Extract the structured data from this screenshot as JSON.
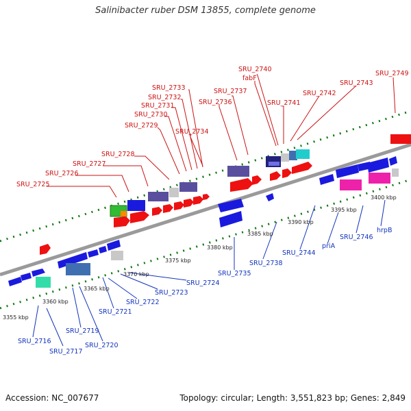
{
  "title": "Salinibacter ruber DSM 13855, complete genome",
  "footer": {
    "accession": "Accession: NC_007677",
    "summary": "Topology: circular; Length: 3,551,823 bp; Genes: 2,849"
  },
  "colors": {
    "red": "#ee1111",
    "blue": "#1a1adf",
    "purple": "#5a4f9e",
    "navy": "#22227a",
    "pink": "#ee22aa",
    "cyan": "#22cccc",
    "teal": "#33ddaa",
    "steel": "#3f6fb0",
    "gray": "#c8c8c8",
    "green": "#33bb33",
    "orange": "#ff8800",
    "label_top": "#cc1111",
    "label_bottom": "#1133bb",
    "axis": "#999999",
    "ticks": "#117711"
  },
  "axis_ticks": [
    {
      "label": "3355 kbp"
    },
    {
      "label": "3360 kbp"
    },
    {
      "label": "3365 kbp"
    },
    {
      "label": "3370 kbp"
    },
    {
      "label": "3375 kbp"
    },
    {
      "label": "3380 kbp"
    },
    {
      "label": "3385 kbp"
    },
    {
      "label": "3390 kbp"
    },
    {
      "label": "3395 kbp"
    },
    {
      "label": "3400 kbp"
    }
  ],
  "top_labels": [
    {
      "text": "SRU_2725"
    },
    {
      "text": "SRU_2726"
    },
    {
      "text": "SRU_2727"
    },
    {
      "text": "SRU_2728"
    },
    {
      "text": "SRU_2729"
    },
    {
      "text": "SRU_2730"
    },
    {
      "text": "SRU_2731"
    },
    {
      "text": "SRU_2732"
    },
    {
      "text": "SRU_2733"
    },
    {
      "text": "SRU_2734"
    },
    {
      "text": "SRU_2736"
    },
    {
      "text": "SRU_2737"
    },
    {
      "text": "SRU_2740"
    },
    {
      "text": "fabF"
    },
    {
      "text": "SRU_2741"
    },
    {
      "text": "SRU_2742"
    },
    {
      "text": "SRU_2743"
    },
    {
      "text": "SRU_2749"
    }
  ],
  "bottom_labels": [
    {
      "text": "SRU_2716"
    },
    {
      "text": "SRU_2717"
    },
    {
      "text": "SRU_2719"
    },
    {
      "text": "SRU_2720"
    },
    {
      "text": "SRU_2721"
    },
    {
      "text": "SRU_2722"
    },
    {
      "text": "SRU_2723"
    },
    {
      "text": "SRU_2724"
    },
    {
      "text": "SRU_2735"
    },
    {
      "text": "SRU_2738"
    },
    {
      "text": "SRU_2744"
    },
    {
      "text": "priA"
    },
    {
      "text": "SRU_2746"
    },
    {
      "text": "hrpB"
    }
  ]
}
